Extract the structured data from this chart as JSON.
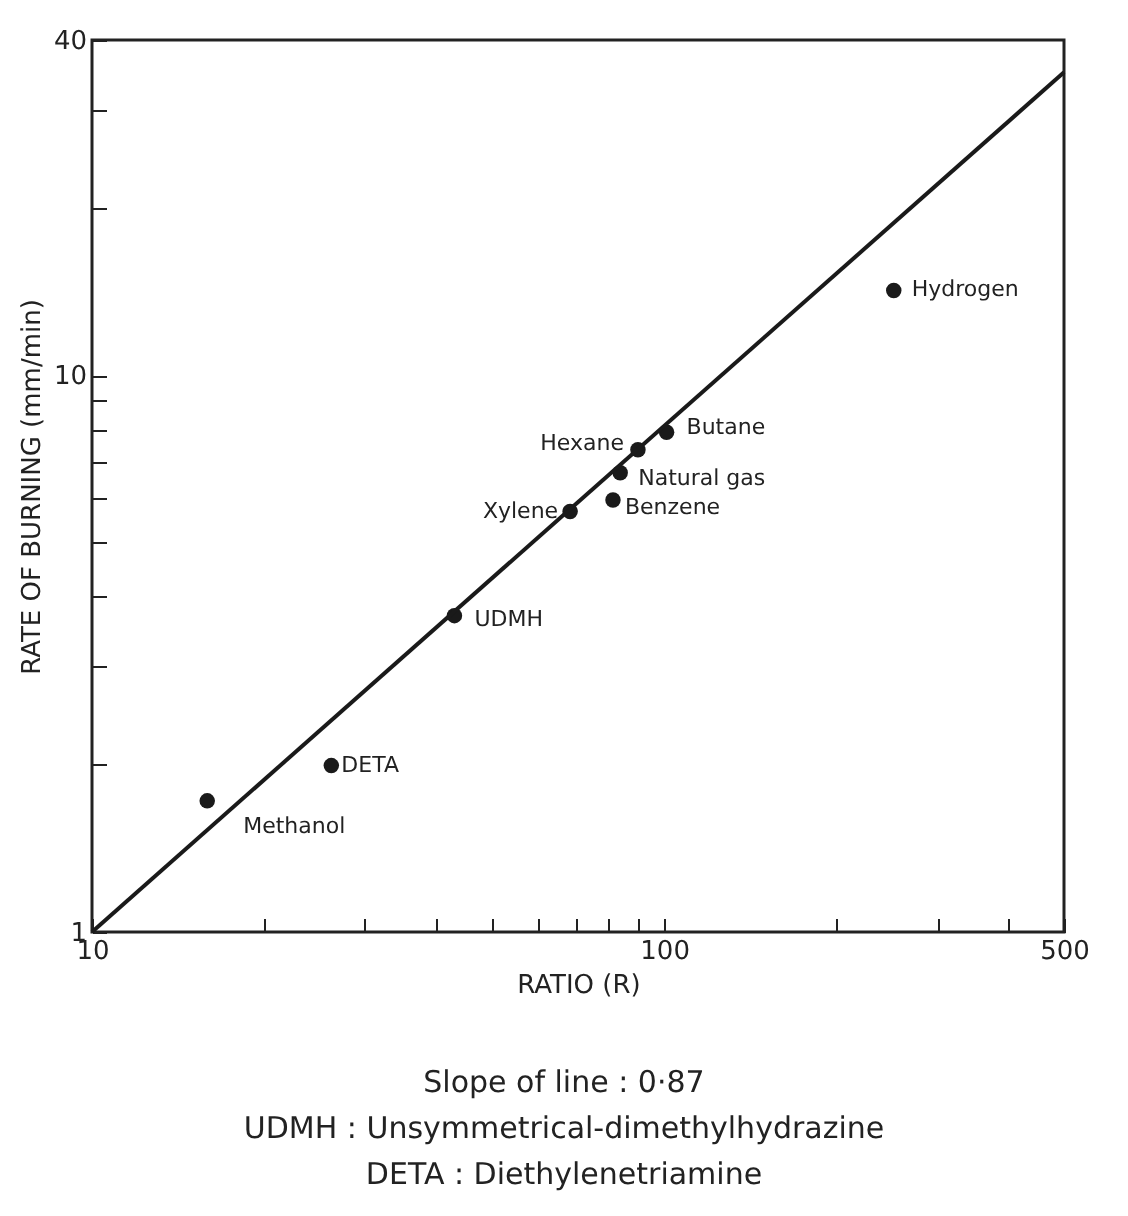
{
  "chart_data": {
    "type": "scatter",
    "xlabel": "RATIO (R)",
    "ylabel": "RATE OF BURNING (mm/min)",
    "log": "xy",
    "xlim": [
      10,
      500
    ],
    "ylim": [
      1,
      40
    ],
    "xticks": [
      10,
      {
        "value": 20,
        "label": null
      },
      {
        "value": 30,
        "label": null
      },
      {
        "value": 40,
        "label": null
      },
      {
        "value": 50,
        "label": null
      },
      {
        "value": 60,
        "label": null
      },
      {
        "value": 70,
        "label": null
      },
      {
        "value": 80,
        "label": null
      },
      {
        "value": 90,
        "label": null
      },
      100,
      {
        "value": 200,
        "label": null
      },
      {
        "value": 300,
        "label": null
      },
      {
        "value": 400,
        "label": null
      },
      500
    ],
    "yticks": [
      1,
      {
        "value": 2,
        "label": null
      },
      {
        "value": 3,
        "label": null
      },
      {
        "value": 4,
        "label": null
      },
      {
        "value": 5,
        "label": null
      },
      {
        "value": 6,
        "label": null
      },
      {
        "value": 7,
        "label": null
      },
      {
        "value": 8,
        "label": null
      },
      {
        "value": 9,
        "label": null
      },
      10,
      {
        "value": 20,
        "label": null
      },
      {
        "value": 30,
        "label": null
      },
      40
    ],
    "grid": false,
    "series": [
      {
        "color": "#1a1a1a",
        "marker": "circle",
        "x": [
          252,
          101,
          90,
          83.8,
          81.4,
          68.5,
          43,
          26.2,
          15.9
        ],
        "values": [
          14.2,
          7.9,
          7.35,
          6.68,
          5.97,
          5.69,
          3.7,
          1.99,
          1.72
        ]
      },
      {
        "type": "line",
        "color": "#1a1a1a",
        "line_style": "solid",
        "x": [
          10,
          500
        ],
        "values": [
          1,
          35
        ]
      }
    ],
    "annotations": [
      {
        "text": "Hydrogen",
        "x": 252,
        "y": 14.2
      },
      {
        "text": "Butane",
        "x": 101,
        "y": 7.9
      },
      {
        "text": "Hexane",
        "x": 90,
        "y": 7.35
      },
      {
        "text": "Natural gas",
        "x": 83.8,
        "y": 6.68
      },
      {
        "text": "Benzene",
        "x": 81.4,
        "y": 5.97
      },
      {
        "text": "Xylene",
        "x": 68.5,
        "y": 5.69
      },
      {
        "text": "UDMH",
        "x": 43,
        "y": 3.7
      },
      {
        "text": "DETA",
        "x": 26.2,
        "y": 1.99
      },
      {
        "text": "Methanol",
        "x": 15.9,
        "y": 1.72
      },
      "Slope of line : 0·87",
      "UDMH : Unsymmetrical-dimethylhydrazine",
      "DETA : Diethylenetriamine"
    ]
  }
}
